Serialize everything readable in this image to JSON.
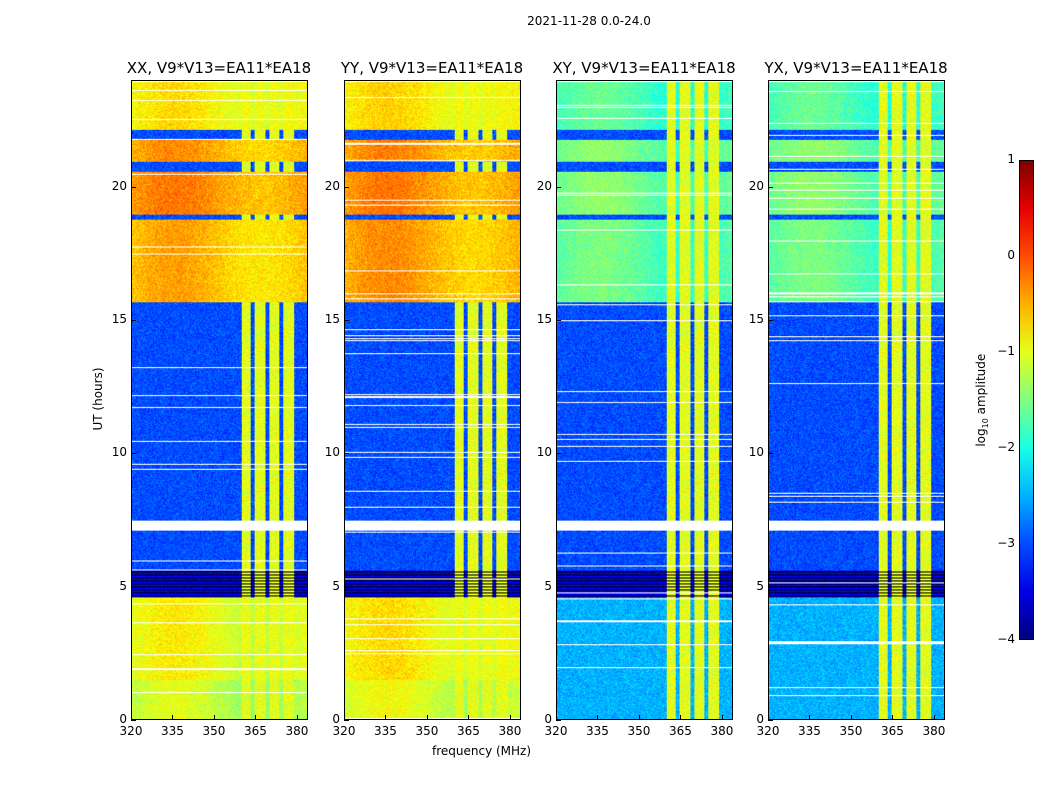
{
  "chart_data": {
    "type": "heatmap",
    "title": "2021-11-28 0.0-24.0",
    "xlabel": "frequency (MHz)",
    "ylabel": "UT (hours)",
    "xlim": [
      320,
      384
    ],
    "ylim": [
      0,
      24
    ],
    "xticks": [
      "320",
      "335",
      "350",
      "365",
      "380"
    ],
    "xtick_values": [
      320,
      335,
      350,
      365,
      380
    ],
    "yticks": [
      "0",
      "5",
      "10",
      "15",
      "20"
    ],
    "ytick_values": [
      0,
      5,
      10,
      15,
      20
    ],
    "colorbar": {
      "label": "log10 amplitude",
      "label_main": "log",
      "label_sub": "10",
      "label_tail": " amplitude",
      "range": [
        -4,
        1
      ],
      "ticks": [
        "1",
        "0",
        "−1",
        "−2",
        "−3",
        "−4"
      ],
      "tick_values": [
        1,
        0,
        -1,
        -2,
        -3,
        -4
      ],
      "colormap": "jet"
    },
    "rfi_band_mhz": [
      360,
      379
    ],
    "rfi_gaps_mhz": [
      364,
      369.5,
      374.5
    ],
    "panels": [
      {
        "title": "XX, V9*V13=EA11*EA18",
        "segments": [
          [
            0,
            1.5,
            -1.2
          ],
          [
            1.5,
            4.6,
            -1.0
          ],
          [
            4.6,
            5.6,
            -3.5
          ],
          [
            5.6,
            7.1,
            -3.0
          ],
          [
            7.5,
            15.4,
            -3.0
          ],
          [
            15.4,
            15.7,
            -3.0
          ],
          [
            15.7,
            18.8,
            -0.6
          ],
          [
            18.8,
            19.0,
            -3.0
          ],
          [
            19.0,
            20.6,
            -0.4
          ],
          [
            20.6,
            21.0,
            -3.0
          ],
          [
            21.0,
            21.8,
            -0.5
          ],
          [
            21.8,
            22.2,
            -3.0
          ],
          [
            22.2,
            24,
            -0.9
          ]
        ]
      },
      {
        "title": "YY, V9*V13=EA11*EA18",
        "segments": [
          [
            0,
            1.5,
            -1.1
          ],
          [
            1.5,
            4.6,
            -0.9
          ],
          [
            4.6,
            5.6,
            -3.5
          ],
          [
            5.6,
            7.1,
            -3.0
          ],
          [
            7.5,
            15.4,
            -3.0
          ],
          [
            15.4,
            15.7,
            -3.0
          ],
          [
            15.7,
            18.8,
            -0.5
          ],
          [
            18.8,
            19.0,
            -3.0
          ],
          [
            19.0,
            20.6,
            -0.4
          ],
          [
            20.6,
            21.0,
            -3.0
          ],
          [
            21.0,
            21.8,
            -0.45
          ],
          [
            21.8,
            22.2,
            -3.0
          ],
          [
            22.2,
            24,
            -0.85
          ]
        ]
      },
      {
        "title": "XY, V9*V13=EA11*EA18",
        "segments": [
          [
            0,
            4.6,
            -2.5
          ],
          [
            4.6,
            5.6,
            -3.5
          ],
          [
            5.6,
            7.1,
            -3.0
          ],
          [
            7.5,
            15.4,
            -3.0
          ],
          [
            15.4,
            15.7,
            -3.0
          ],
          [
            15.7,
            18.8,
            -1.7
          ],
          [
            18.8,
            19.0,
            -3.0
          ],
          [
            19.0,
            20.6,
            -1.6
          ],
          [
            20.6,
            21.0,
            -3.0
          ],
          [
            21.0,
            21.8,
            -1.6
          ],
          [
            21.8,
            22.2,
            -3.0
          ],
          [
            22.2,
            24,
            -1.8
          ]
        ]
      },
      {
        "title": "YX, V9*V13=EA11*EA18",
        "segments": [
          [
            0,
            4.6,
            -2.5
          ],
          [
            4.6,
            5.6,
            -3.5
          ],
          [
            5.6,
            7.1,
            -3.0
          ],
          [
            7.5,
            15.4,
            -3.0
          ],
          [
            15.4,
            15.7,
            -3.0
          ],
          [
            15.7,
            18.8,
            -1.7
          ],
          [
            18.8,
            19.0,
            -3.0
          ],
          [
            19.0,
            20.6,
            -1.6
          ],
          [
            20.6,
            21.0,
            -3.0
          ],
          [
            21.0,
            21.8,
            -1.6
          ],
          [
            21.8,
            22.2,
            -3.0
          ],
          [
            22.2,
            24,
            -1.8
          ]
        ]
      }
    ]
  }
}
